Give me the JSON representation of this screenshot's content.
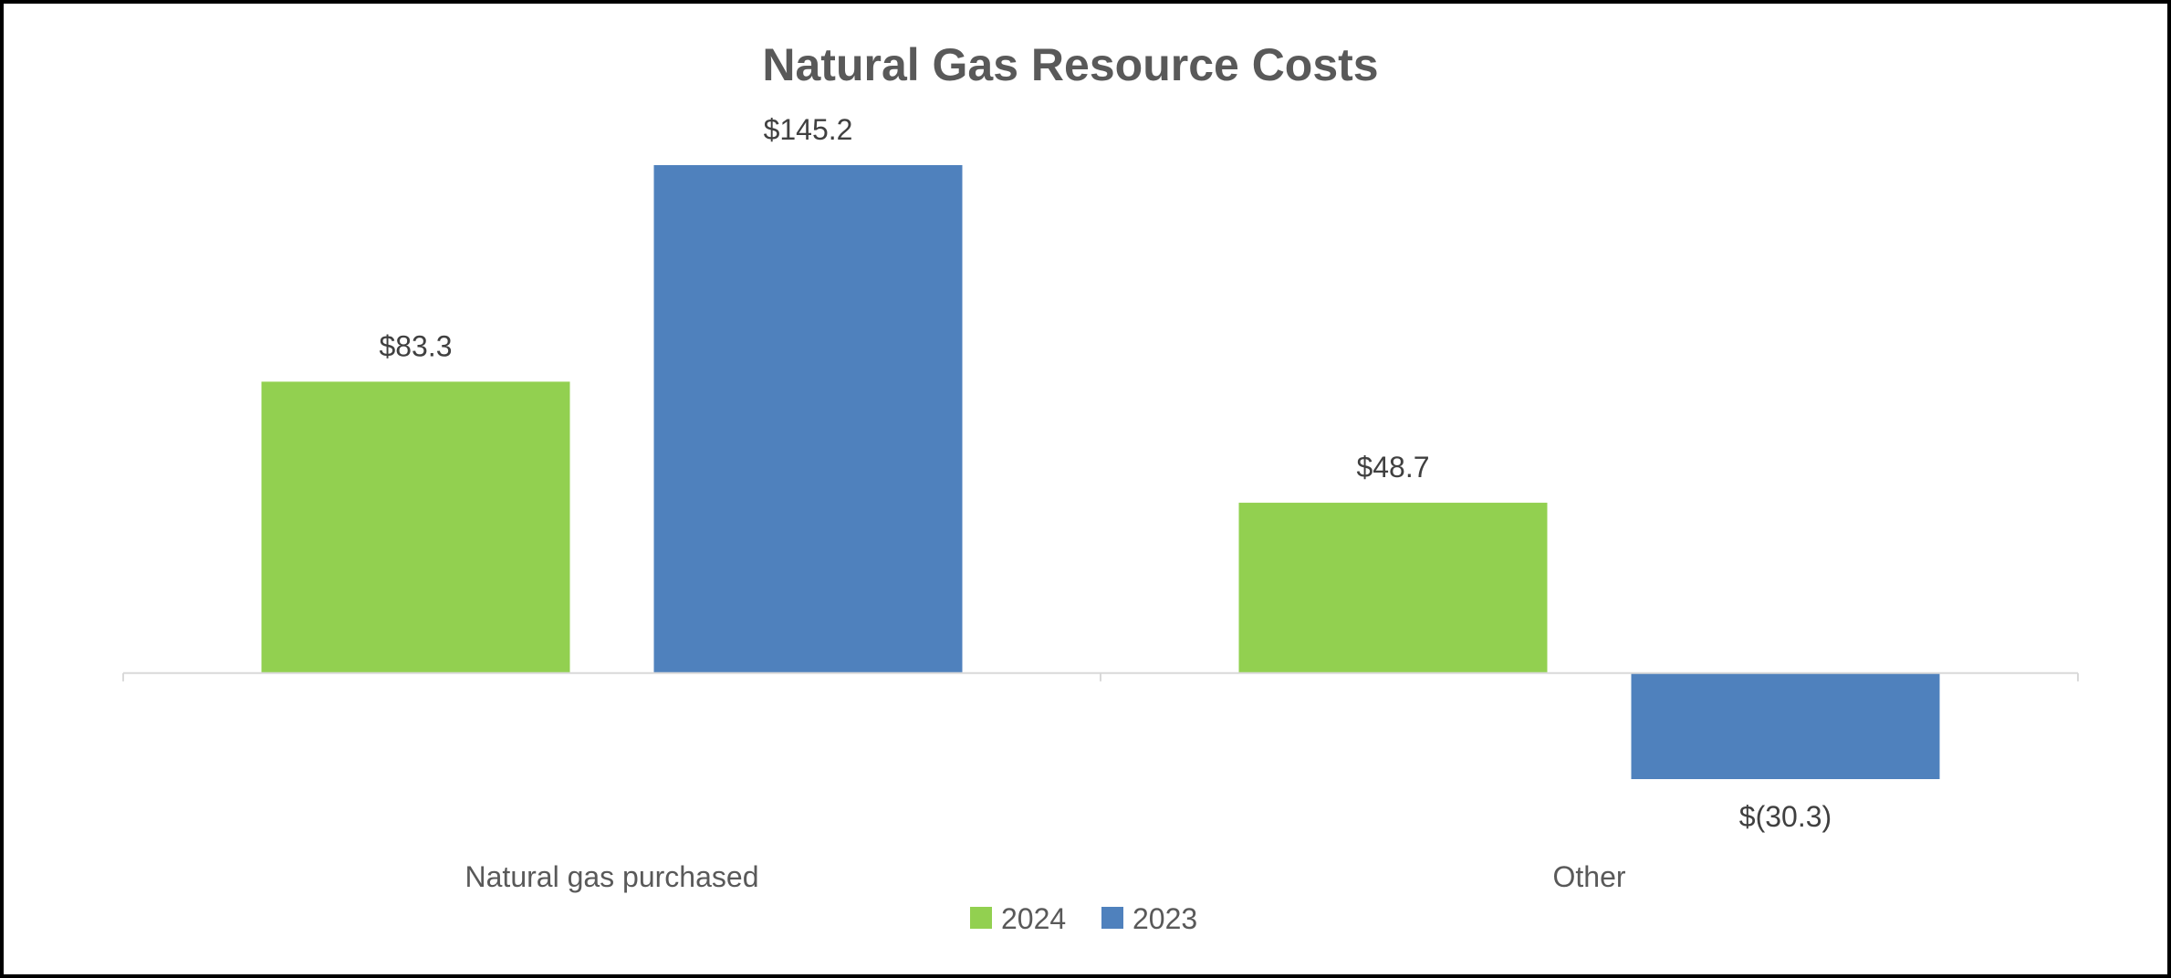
{
  "chart_data": {
    "type": "bar",
    "title": "Natural Gas Resource Costs",
    "categories": [
      "Natural gas purchased",
      "Other"
    ],
    "series": [
      {
        "name": "2024",
        "color": "#92D050",
        "values": [
          83.3,
          48.7
        ],
        "labels": [
          "$83.3",
          "$48.7"
        ]
      },
      {
        "name": "2023",
        "color": "#4F81BD",
        "values": [
          145.2,
          -30.3
        ],
        "labels": [
          "$145.2",
          "$(30.3)"
        ]
      }
    ],
    "ylim": [
      -30.3,
      145.2
    ],
    "grid": false,
    "legend": "bottom",
    "axis_color": "#D9D9D9"
  }
}
